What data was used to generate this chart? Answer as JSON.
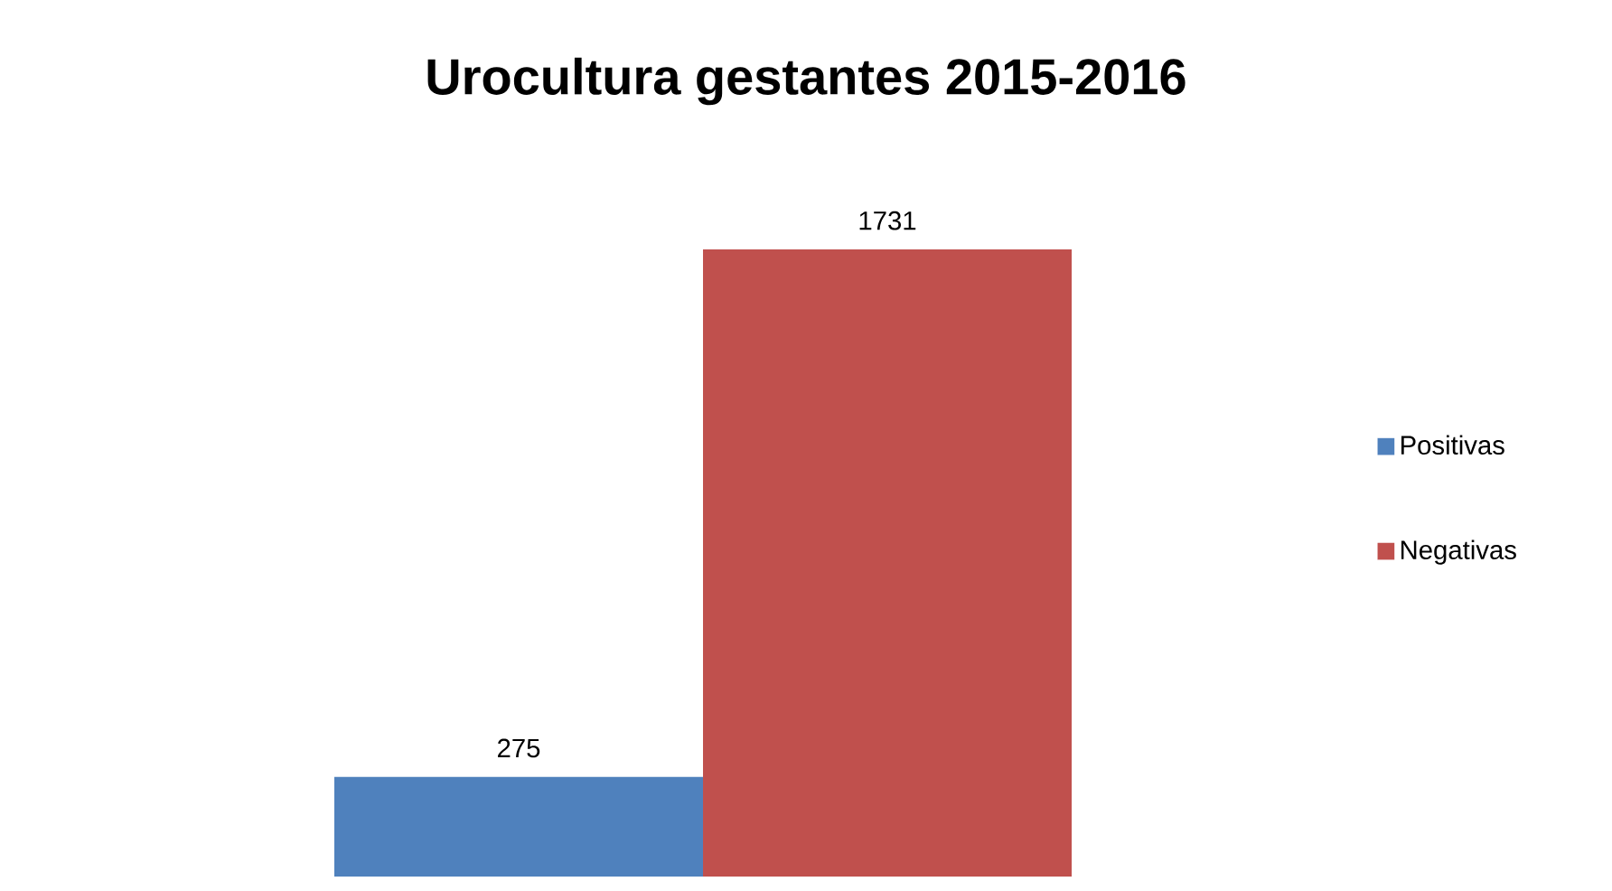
{
  "chart_data": {
    "type": "bar",
    "title": "Urocultura gestantes 2015-2016",
    "categories": [
      null
    ],
    "series": [
      {
        "name": "Positivas",
        "color": "#4f81bd",
        "values": [
          275
        ]
      },
      {
        "name": "Negativas",
        "color": "#c0504d",
        "values": [
          1731
        ]
      }
    ],
    "data_labels": true,
    "legend": "right"
  }
}
